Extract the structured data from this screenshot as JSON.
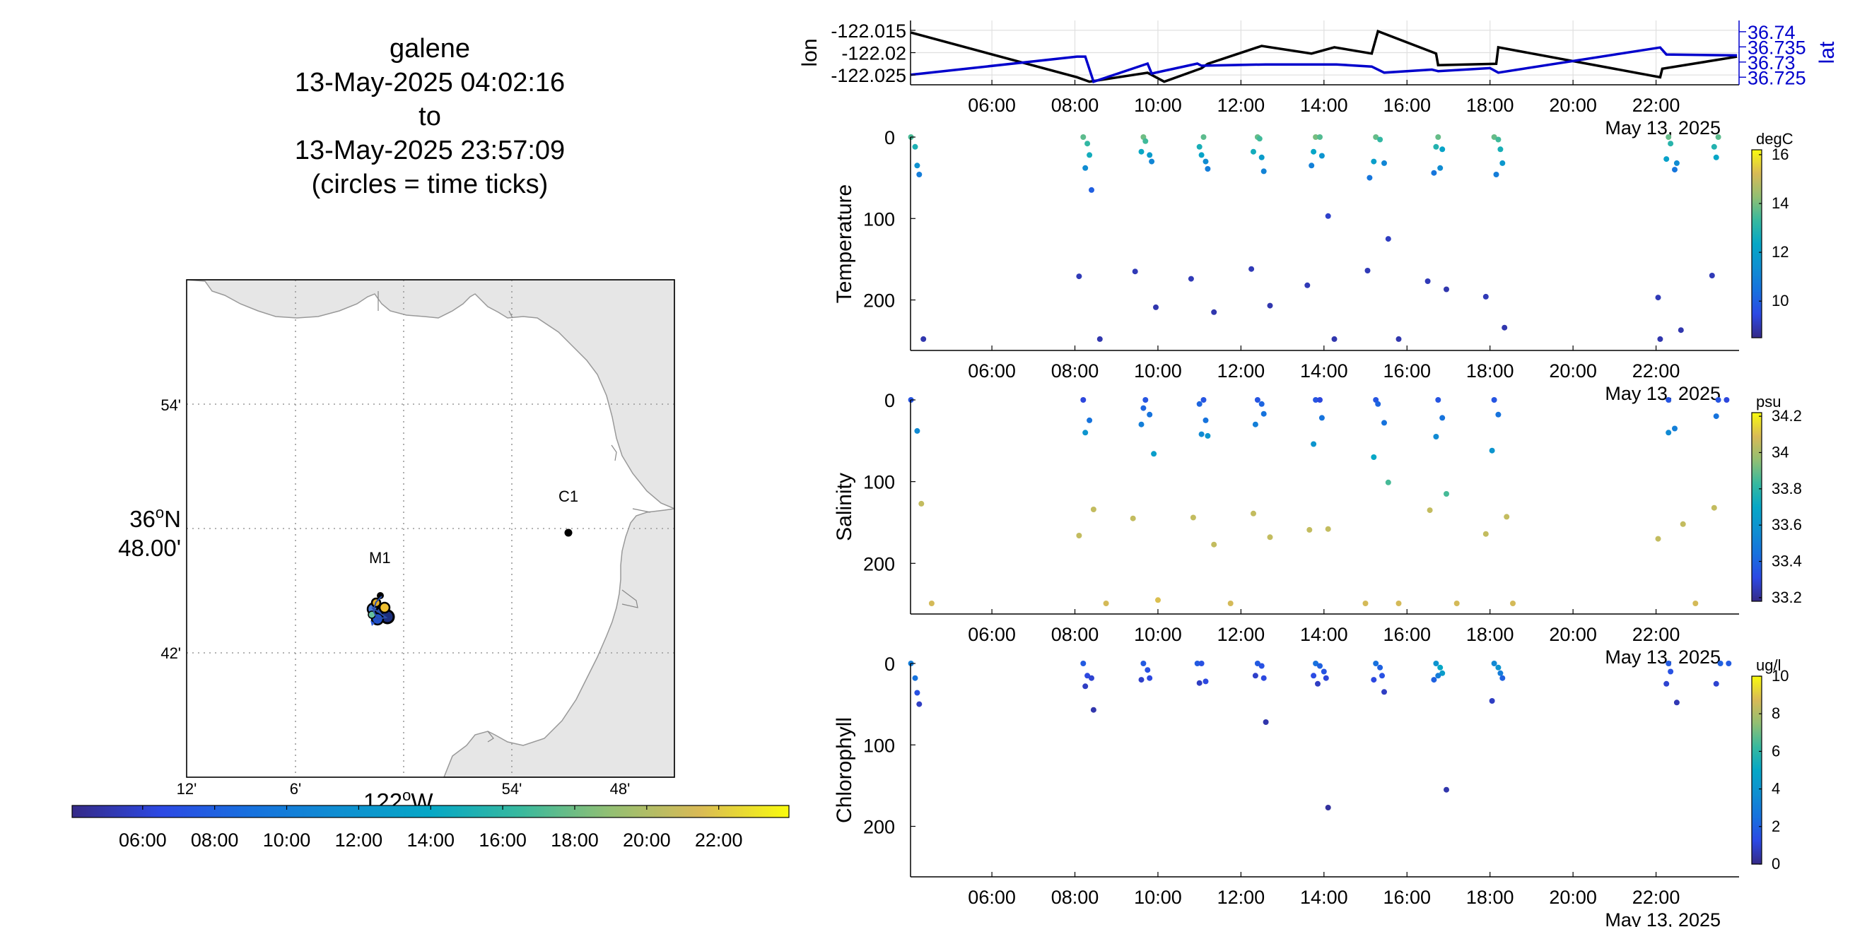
{
  "title": {
    "lines": [
      "galene",
      "13-May-2025 04:02:16",
      "to",
      "13-May-2025 23:57:09",
      "(circles = time ticks)"
    ]
  },
  "map": {
    "lon_ticks": [
      "12'",
      "6'",
      "54'",
      "48'"
    ],
    "lon_label_main": "122",
    "lon_label_sup": "o",
    "lon_label_suffix": "W",
    "lat_ticks": [
      "54'",
      "42'"
    ],
    "lat_label_main": "36",
    "lat_label_sup": "o",
    "lat_label_suffix": "N",
    "lat_label_line2": "48.00'",
    "stations": [
      {
        "name": "M1"
      },
      {
        "name": "C1"
      }
    ],
    "colors": {
      "land": "#e6e6e6",
      "coast": "#999999",
      "grid": "#9a9a9a"
    }
  },
  "time_colorbar": {
    "ticks": [
      "06:00",
      "08:00",
      "10:00",
      "12:00",
      "14:00",
      "16:00",
      "18:00",
      "20:00",
      "22:00"
    ],
    "range_hours": [
      4.04,
      23.95
    ]
  },
  "chart_data": [
    {
      "type": "line",
      "name": "position",
      "x_ticks": [
        "06:00",
        "08:00",
        "10:00",
        "12:00",
        "14:00",
        "16:00",
        "18:00",
        "20:00",
        "22:00"
      ],
      "date_label": "May 13, 2025",
      "xlim_hours": [
        4.04,
        24.0
      ],
      "left_axis": {
        "label": "lon",
        "ticks": [
          "-122.015",
          "-122.02",
          "-122.025"
        ],
        "tick_values": [
          -122.015,
          -122.02,
          -122.025
        ],
        "ylim": [
          -122.0272,
          -122.0128
        ]
      },
      "right_axis": {
        "label": "lat",
        "ticks": [
          "36.74",
          "36.735",
          "36.73",
          "36.725"
        ],
        "tick_values": [
          36.74,
          36.735,
          36.73,
          36.725
        ],
        "ylim": [
          36.7225,
          36.7437
        ]
      },
      "series": [
        {
          "name": "lon",
          "color": "#000000",
          "x": [
            4.05,
            8.05,
            8.35,
            9.75,
            10.15,
            11.05,
            11.2,
            12.5,
            13.7,
            14.25,
            15.15,
            15.3,
            16.7,
            16.75,
            18.15,
            18.2,
            22.1,
            22.15,
            23.95
          ],
          "y": [
            -122.0155,
            -122.0255,
            -122.0265,
            -122.0245,
            -122.0265,
            -122.0235,
            -122.0225,
            -122.0185,
            -122.0202,
            -122.0188,
            -122.0202,
            -122.0152,
            -122.0202,
            -122.0228,
            -122.0225,
            -122.0188,
            -122.0255,
            -122.0236,
            -122.0209
          ]
        },
        {
          "name": "lat",
          "color": "#0000cc",
          "x": [
            4.05,
            8.05,
            8.25,
            8.45,
            9.75,
            9.85,
            10.95,
            11.05,
            12.6,
            14.3,
            15.15,
            15.45,
            16.6,
            16.75,
            18.0,
            18.2,
            22.1,
            22.25,
            23.95
          ],
          "y": [
            36.7258,
            36.7318,
            36.7318,
            36.7235,
            36.7295,
            36.7262,
            36.7295,
            36.7288,
            36.7292,
            36.7292,
            36.7285,
            36.7265,
            36.7275,
            36.727,
            36.728,
            36.7265,
            36.7348,
            36.7325,
            36.7322
          ]
        }
      ]
    },
    {
      "type": "scatter",
      "name": "temperature",
      "ylabel": "Temperature",
      "y_ticks": [
        "0",
        "100",
        "200"
      ],
      "ylim": [
        0,
        262
      ],
      "x_ticks": [
        "06:00",
        "08:00",
        "10:00",
        "12:00",
        "14:00",
        "16:00",
        "18:00",
        "20:00",
        "22:00"
      ],
      "date_label": "May 13, 2025",
      "xlim_hours": [
        4.04,
        24.0
      ],
      "colorbar": {
        "units": "degC",
        "ticks": [
          "16",
          "14",
          "12",
          "10"
        ],
        "tick_values": [
          16,
          14,
          12,
          10
        ],
        "clim": [
          8.5,
          16.2
        ]
      },
      "points": [
        [
          4.05,
          0,
          13.5
        ],
        [
          4.15,
          12,
          12.8
        ],
        [
          4.2,
          35,
          11.5
        ],
        [
          4.25,
          46,
          10.8
        ],
        [
          4.35,
          248,
          8.9
        ],
        [
          8.2,
          0,
          13.7
        ],
        [
          8.3,
          8,
          13.2
        ],
        [
          8.35,
          22,
          12.6
        ],
        [
          8.25,
          38,
          11.3
        ],
        [
          8.4,
          65,
          10.0
        ],
        [
          8.1,
          171,
          9.0
        ],
        [
          8.6,
          248,
          8.9
        ],
        [
          9.65,
          0,
          13.9
        ],
        [
          9.7,
          5,
          13.4
        ],
        [
          9.6,
          18,
          12.4
        ],
        [
          9.8,
          22,
          11.9
        ],
        [
          9.85,
          30,
          11.1
        ],
        [
          9.45,
          165,
          9.0
        ],
        [
          9.95,
          209,
          8.9
        ],
        [
          11.1,
          0,
          13.7
        ],
        [
          11.0,
          12,
          12.7
        ],
        [
          11.05,
          22,
          12.2
        ],
        [
          11.15,
          30,
          11.3
        ],
        [
          11.2,
          39,
          10.8
        ],
        [
          10.8,
          174,
          9.0
        ],
        [
          11.35,
          215,
          8.9
        ],
        [
          12.4,
          0,
          13.8
        ],
        [
          12.45,
          2,
          13.4
        ],
        [
          12.3,
          18,
          12.6
        ],
        [
          12.5,
          25,
          11.9
        ],
        [
          12.55,
          42,
          11.0
        ],
        [
          12.25,
          162,
          9.0
        ],
        [
          12.7,
          207,
          8.9
        ],
        [
          13.8,
          0,
          14.0
        ],
        [
          13.9,
          0,
          13.6
        ],
        [
          13.75,
          18,
          12.3
        ],
        [
          13.95,
          23,
          11.6
        ],
        [
          13.7,
          35,
          10.9
        ],
        [
          14.1,
          97,
          9.2
        ],
        [
          13.6,
          182,
          9.0
        ],
        [
          14.25,
          248,
          8.9
        ],
        [
          15.25,
          0,
          13.8
        ],
        [
          15.35,
          3,
          13.2
        ],
        [
          15.2,
          30,
          12.0
        ],
        [
          15.45,
          32,
          11.1
        ],
        [
          15.1,
          50,
          10.6
        ],
        [
          15.55,
          125,
          9.1
        ],
        [
          15.05,
          164,
          9.0
        ],
        [
          15.8,
          248,
          8.9
        ],
        [
          16.75,
          0,
          13.8
        ],
        [
          16.7,
          12,
          12.9
        ],
        [
          16.85,
          15,
          12.2
        ],
        [
          16.8,
          38,
          11.3
        ],
        [
          16.65,
          44,
          10.6
        ],
        [
          16.5,
          177,
          9.0
        ],
        [
          16.95,
          187,
          8.9
        ],
        [
          18.1,
          0,
          13.8
        ],
        [
          18.2,
          3,
          13.4
        ],
        [
          18.25,
          15,
          12.7
        ],
        [
          18.3,
          32,
          11.7
        ],
        [
          18.15,
          46,
          10.8
        ],
        [
          17.9,
          196,
          9.0
        ],
        [
          18.35,
          234,
          8.9
        ],
        [
          22.3,
          0,
          13.8
        ],
        [
          22.35,
          8,
          13.0
        ],
        [
          22.25,
          27,
          12.1
        ],
        [
          22.5,
          32,
          11.3
        ],
        [
          22.45,
          40,
          10.6
        ],
        [
          22.05,
          197,
          9.0
        ],
        [
          22.6,
          237,
          8.9
        ],
        [
          22.1,
          248,
          8.9
        ],
        [
          23.5,
          0,
          13.7
        ],
        [
          23.4,
          12,
          12.9
        ],
        [
          23.45,
          25,
          12.3
        ],
        [
          23.35,
          170,
          9.0
        ]
      ]
    },
    {
      "type": "scatter",
      "name": "salinity",
      "ylabel": "Salinity",
      "y_ticks": [
        "0",
        "100",
        "200"
      ],
      "ylim": [
        0,
        262
      ],
      "x_ticks": [
        "06:00",
        "08:00",
        "10:00",
        "12:00",
        "14:00",
        "16:00",
        "18:00",
        "20:00",
        "22:00"
      ],
      "date_label": "May 13, 2025",
      "xlim_hours": [
        4.04,
        24.0
      ],
      "colorbar": {
        "units": "psu",
        "ticks": [
          "34.2",
          "34",
          "33.8",
          "33.6",
          "33.4",
          "33.2"
        ],
        "tick_values": [
          34.2,
          34.0,
          33.8,
          33.6,
          33.4,
          33.2
        ],
        "clim": [
          33.18,
          34.22
        ]
      },
      "points": [
        [
          4.05,
          0,
          33.35
        ],
        [
          4.2,
          38,
          33.55
        ],
        [
          4.3,
          127,
          34.05
        ],
        [
          4.55,
          249,
          34.08
        ],
        [
          8.2,
          0,
          33.3
        ],
        [
          8.35,
          25,
          33.45
        ],
        [
          8.25,
          40,
          33.6
        ],
        [
          8.1,
          166,
          34.05
        ],
        [
          8.45,
          134,
          34.05
        ],
        [
          8.75,
          249,
          34.08
        ],
        [
          9.7,
          0,
          33.35
        ],
        [
          9.65,
          10,
          33.4
        ],
        [
          9.6,
          30,
          33.5
        ],
        [
          9.8,
          18,
          33.45
        ],
        [
          9.9,
          66,
          33.65
        ],
        [
          9.4,
          145,
          34.05
        ],
        [
          10.0,
          245,
          34.1
        ],
        [
          11.1,
          0,
          33.35
        ],
        [
          11.0,
          5,
          33.4
        ],
        [
          11.15,
          25,
          33.45
        ],
        [
          11.05,
          42,
          33.55
        ],
        [
          11.2,
          44,
          33.6
        ],
        [
          10.85,
          144,
          34.05
        ],
        [
          11.35,
          177,
          34.05
        ],
        [
          11.75,
          249,
          34.08
        ],
        [
          12.4,
          0,
          33.35
        ],
        [
          12.5,
          5,
          33.4
        ],
        [
          12.55,
          17,
          33.45
        ],
        [
          12.35,
          30,
          33.5
        ],
        [
          12.3,
          139,
          34.05
        ],
        [
          12.7,
          168,
          34.05
        ],
        [
          13.8,
          0,
          33.35
        ],
        [
          13.9,
          0,
          33.3
        ],
        [
          13.95,
          22,
          33.45
        ],
        [
          13.75,
          54,
          33.6
        ],
        [
          13.65,
          159,
          34.05
        ],
        [
          14.1,
          158,
          34.05
        ],
        [
          15.25,
          0,
          33.35
        ],
        [
          15.3,
          5,
          33.4
        ],
        [
          15.45,
          28,
          33.45
        ],
        [
          15.2,
          70,
          33.7
        ],
        [
          15.55,
          101,
          33.85
        ],
        [
          15.0,
          249,
          34.08
        ],
        [
          15.8,
          249,
          34.08
        ],
        [
          16.75,
          0,
          33.35
        ],
        [
          16.85,
          22,
          33.45
        ],
        [
          16.7,
          45,
          33.55
        ],
        [
          16.95,
          115,
          33.85
        ],
        [
          16.55,
          135,
          34.05
        ],
        [
          17.2,
          249,
          34.08
        ],
        [
          18.1,
          0,
          33.35
        ],
        [
          18.2,
          18,
          33.45
        ],
        [
          18.05,
          62,
          33.6
        ],
        [
          18.4,
          143,
          34.05
        ],
        [
          17.9,
          164,
          34.05
        ],
        [
          18.55,
          249,
          34.08
        ],
        [
          22.3,
          0,
          33.35
        ],
        [
          22.45,
          35,
          33.5
        ],
        [
          22.3,
          40,
          33.55
        ],
        [
          22.65,
          152,
          34.05
        ],
        [
          22.05,
          170,
          34.05
        ],
        [
          22.95,
          249,
          34.08
        ],
        [
          23.5,
          0,
          33.35
        ],
        [
          23.7,
          0,
          33.3
        ],
        [
          23.45,
          20,
          33.45
        ],
        [
          23.4,
          132,
          34.05
        ]
      ]
    },
    {
      "type": "scatter",
      "name": "chlorophyll",
      "ylabel": "Chlorophyll",
      "y_ticks": [
        "0",
        "100",
        "200"
      ],
      "ylim": [
        0,
        262
      ],
      "x_ticks": [
        "06:00",
        "08:00",
        "10:00",
        "12:00",
        "14:00",
        "16:00",
        "18:00",
        "20:00",
        "22:00"
      ],
      "date_label": "May 13, 2025",
      "xlim_hours": [
        4.04,
        24.0
      ],
      "colorbar": {
        "units": "ug/l",
        "ticks": [
          "10",
          "8",
          "6",
          "4",
          "2",
          "0"
        ],
        "tick_values": [
          10,
          8,
          6,
          4,
          2,
          0
        ],
        "clim": [
          0,
          10
        ]
      },
      "points": [
        [
          4.05,
          0,
          3.0
        ],
        [
          4.15,
          18,
          2.6
        ],
        [
          4.2,
          36,
          1.5
        ],
        [
          4.25,
          50,
          0.8
        ],
        [
          8.2,
          0,
          1.8
        ],
        [
          8.3,
          15,
          1.2
        ],
        [
          8.4,
          18,
          1.0
        ],
        [
          8.25,
          28,
          0.8
        ],
        [
          8.45,
          57,
          0.5
        ],
        [
          9.65,
          0,
          1.8
        ],
        [
          9.75,
          8,
          1.5
        ],
        [
          9.8,
          18,
          1.2
        ],
        [
          9.6,
          20,
          0.9
        ],
        [
          10.95,
          0,
          1.8
        ],
        [
          11.05,
          0,
          1.5
        ],
        [
          11.15,
          22,
          1.2
        ],
        [
          11.0,
          24,
          0.8
        ],
        [
          12.4,
          0,
          1.8
        ],
        [
          12.5,
          3,
          1.5
        ],
        [
          12.55,
          18,
          1.2
        ],
        [
          12.35,
          15,
          0.9
        ],
        [
          12.6,
          72,
          0.5
        ],
        [
          13.8,
          0,
          2.5
        ],
        [
          13.9,
          3,
          2.0
        ],
        [
          14.0,
          10,
          1.6
        ],
        [
          13.75,
          15,
          1.3
        ],
        [
          14.05,
          18,
          1.1
        ],
        [
          13.85,
          25,
          0.8
        ],
        [
          14.1,
          177,
          0.3
        ],
        [
          15.25,
          0,
          2.5
        ],
        [
          15.35,
          5,
          2.0
        ],
        [
          15.4,
          15,
          1.5
        ],
        [
          15.2,
          20,
          1.2
        ],
        [
          15.45,
          35,
          0.8
        ],
        [
          16.7,
          0,
          4.0
        ],
        [
          16.8,
          5,
          5.0
        ],
        [
          16.85,
          12,
          4.5
        ],
        [
          16.75,
          15,
          3.0
        ],
        [
          16.65,
          20,
          2.0
        ],
        [
          16.95,
          155,
          0.5
        ],
        [
          18.1,
          0,
          3.5
        ],
        [
          18.2,
          5,
          4.0
        ],
        [
          18.25,
          12,
          3.0
        ],
        [
          18.3,
          18,
          2.0
        ],
        [
          18.05,
          46,
          0.8
        ],
        [
          22.3,
          0,
          1.8
        ],
        [
          22.35,
          10,
          1.5
        ],
        [
          22.25,
          25,
          1.0
        ],
        [
          22.5,
          48,
          0.6
        ],
        [
          23.55,
          0,
          2.0
        ],
        [
          23.75,
          0,
          1.8
        ],
        [
          23.45,
          25,
          1.0
        ]
      ]
    }
  ]
}
